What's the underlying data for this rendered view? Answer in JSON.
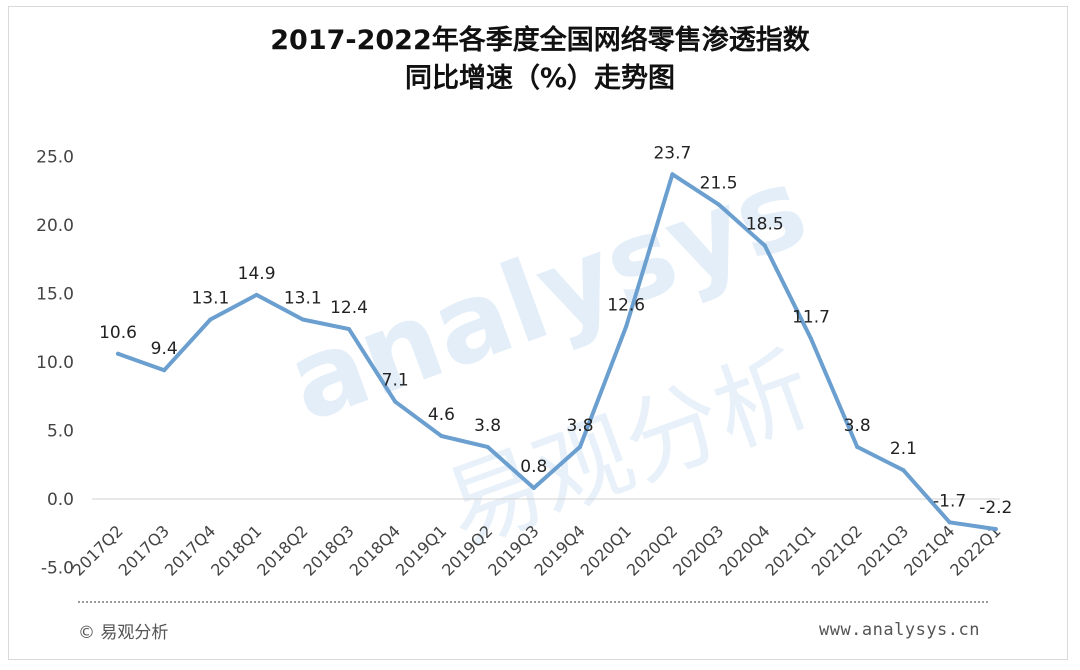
{
  "chart_data": {
    "type": "line",
    "title_lines": [
      "2017-2022年各季度全国网络零售渗透指数",
      "同比增速（%）走势图"
    ],
    "categories": [
      "2017Q2",
      "2017Q3",
      "2017Q4",
      "2018Q1",
      "2018Q2",
      "2018Q3",
      "2018Q4",
      "2019Q1",
      "2019Q2",
      "2019Q3",
      "2019Q4",
      "2020Q1",
      "2020Q2",
      "2020Q3",
      "2020Q4",
      "2021Q1",
      "2021Q2",
      "2021Q3",
      "2021Q4",
      "2022Q1"
    ],
    "values": [
      10.6,
      9.4,
      13.1,
      14.9,
      13.1,
      12.4,
      7.1,
      4.6,
      3.8,
      0.8,
      3.8,
      12.6,
      23.7,
      21.5,
      18.5,
      11.7,
      3.8,
      2.1,
      -1.7,
      -2.2
    ],
    "data_labels": [
      "10.6",
      "9.4",
      "13.1",
      "14.9",
      "13.1",
      "12.4",
      "7.1",
      "4.6",
      "3.8",
      "0.8",
      "3.8",
      "12.6",
      "23.7",
      "21.5",
      "18.5",
      "11.7",
      "3.8",
      "2.1",
      "-1.7",
      "-2.2"
    ],
    "y_ticks": [
      "-5.0",
      "0.0",
      "5.0",
      "10.0",
      "15.0",
      "20.0",
      "25.0"
    ],
    "y_tick_values": [
      -5,
      0,
      5,
      10,
      15,
      20,
      25
    ],
    "ylim": [
      -5,
      25
    ],
    "grid": false,
    "legend": "none",
    "line_color": "#6a9fcf"
  },
  "watermark": {
    "latin": "analysys",
    "chinese": "易观分析"
  },
  "footer": {
    "copyright": "© 易观分析",
    "site": "www.analysys.cn"
  }
}
